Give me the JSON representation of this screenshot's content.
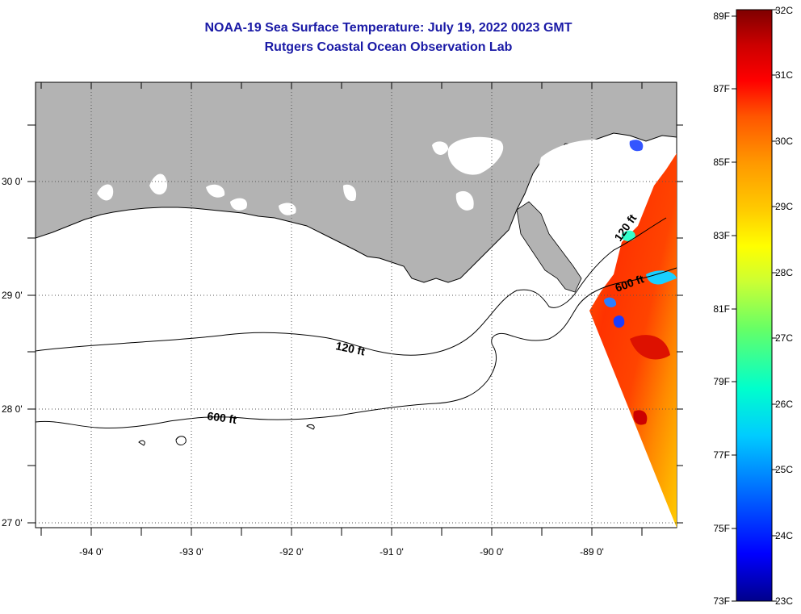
{
  "title": "NOAA-19 Sea Surface Temperature:  July 19, 2022 0023 GMT",
  "subtitle": "Rutgers Coastal Ocean Observation Lab",
  "map": {
    "lon_labels": [
      "-94 0'",
      "-93 0'",
      "-92 0'",
      "-91 0'",
      "-90 0'",
      "-89 0'"
    ],
    "lat_labels": [
      "30 0'",
      "29 0'",
      "28 0'",
      "27 0'"
    ],
    "contour_labels": [
      "120 ft",
      "600 ft",
      "120 ft",
      "600 ft"
    ],
    "colors": {
      "land": "#b3b3b3",
      "water": "#ffffff",
      "cloud": "#ffffff"
    }
  },
  "colorbar": {
    "fahrenheit_labels": [
      "89F",
      "87F",
      "85F",
      "83F",
      "81F",
      "79F",
      "77F",
      "75F",
      "73F"
    ],
    "celsius_labels": [
      "32C",
      "31C",
      "30C",
      "29C",
      "28C",
      "27C",
      "26C",
      "25C",
      "24C",
      "23C"
    ],
    "range_c": [
      23,
      32
    ],
    "palette": [
      "#00008b",
      "#0000ff",
      "#0066ff",
      "#00ccff",
      "#00ffcc",
      "#66ff66",
      "#ccff33",
      "#ffff00",
      "#ffcc00",
      "#ff9900",
      "#ff5500",
      "#ff0000",
      "#cc0000",
      "#7f0000"
    ]
  }
}
